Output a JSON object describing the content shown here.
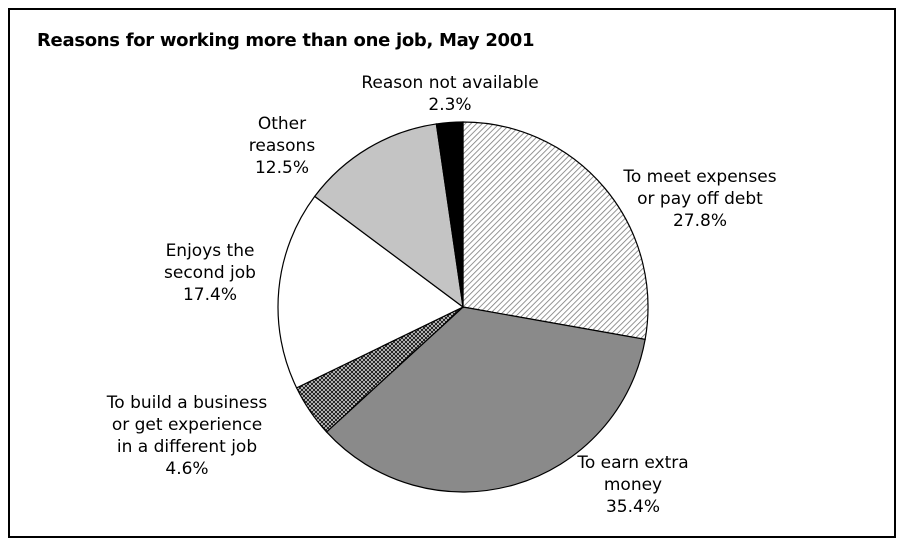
{
  "chart_data": {
    "type": "pie",
    "title": "Reasons for working more than one job, May 2001",
    "slices": [
      {
        "label": [
          "To meet expenses",
          "or pay off debt"
        ],
        "value": 27.8,
        "display": "27.8%",
        "color": "#d8d8d8",
        "pattern": "hatch-light"
      },
      {
        "label": [
          "To earn extra",
          "money"
        ],
        "value": 35.4,
        "display": "35.4%",
        "color": "#8a8a8a",
        "pattern": "solid"
      },
      {
        "label": [
          "To build a business",
          "or get experience",
          "in a different job"
        ],
        "value": 4.6,
        "display": "4.6%",
        "color": "#555555",
        "pattern": "crosshatch"
      },
      {
        "label": [
          "Enjoys the",
          "second job"
        ],
        "value": 17.4,
        "display": "17.4%",
        "color": "#ffffff",
        "pattern": "solid"
      },
      {
        "label": [
          "Other",
          "reasons"
        ],
        "value": 12.5,
        "display": "12.5%",
        "color": "#c4c4c4",
        "pattern": "solid"
      },
      {
        "label": [
          "Reason not available"
        ],
        "value": 2.3,
        "display": "2.3%",
        "color": "#000000",
        "pattern": "solid"
      }
    ]
  }
}
